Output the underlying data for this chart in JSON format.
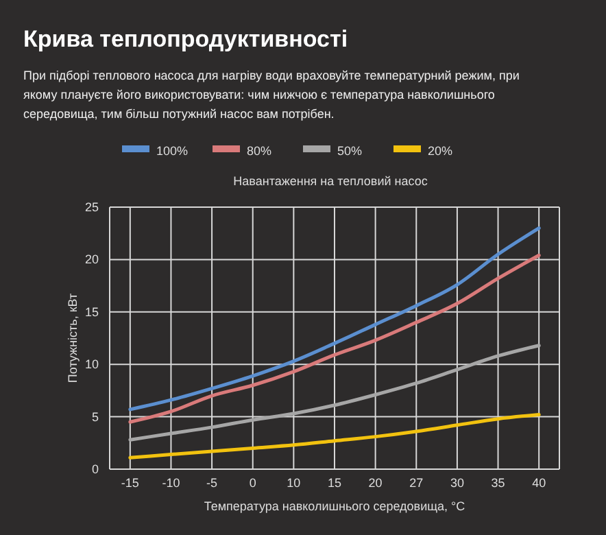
{
  "chart_data": {
    "type": "line",
    "title": "Крива теплопродуктивності",
    "subtitle": "При підборі теплового насоса для нагріву води враховуйте температурний режим, при якому плануєте його використовувати: чим нижчою є температура навколишнього середовища, тим більш потужний насос вам потрібен.",
    "legend_title": "Навантаження на тепловий насос",
    "xlabel": "Температура навколишнього середовища, °C",
    "ylabel": "Потужність, кВт",
    "categories": [
      "-15",
      "-10",
      "-5",
      "0",
      "10",
      "15",
      "20",
      "27",
      "30",
      "35",
      "40"
    ],
    "series": [
      {
        "name": "100%",
        "color": "#5b8fd0",
        "values": [
          5.7,
          6.6,
          7.7,
          8.9,
          10.3,
          12.0,
          13.8,
          15.6,
          17.6,
          20.5,
          23.0
        ]
      },
      {
        "name": "80%",
        "color": "#d97a7a",
        "values": [
          4.5,
          5.5,
          7.0,
          8.0,
          9.3,
          10.9,
          12.3,
          14.0,
          15.8,
          18.2,
          20.4
        ]
      },
      {
        "name": "50%",
        "color": "#a6a6a6",
        "values": [
          2.8,
          3.4,
          4.0,
          4.7,
          5.3,
          6.1,
          7.1,
          8.2,
          9.5,
          10.8,
          11.8
        ]
      },
      {
        "name": "20%",
        "color": "#f2c20f",
        "values": [
          1.1,
          1.4,
          1.7,
          2.0,
          2.3,
          2.7,
          3.1,
          3.6,
          4.2,
          4.8,
          5.2
        ]
      }
    ],
    "ylim": [
      0,
      25
    ],
    "yticks": [
      0,
      5,
      10,
      15,
      20,
      25
    ],
    "grid": true,
    "legend": "top",
    "marker": "none",
    "line_style": "solid"
  }
}
